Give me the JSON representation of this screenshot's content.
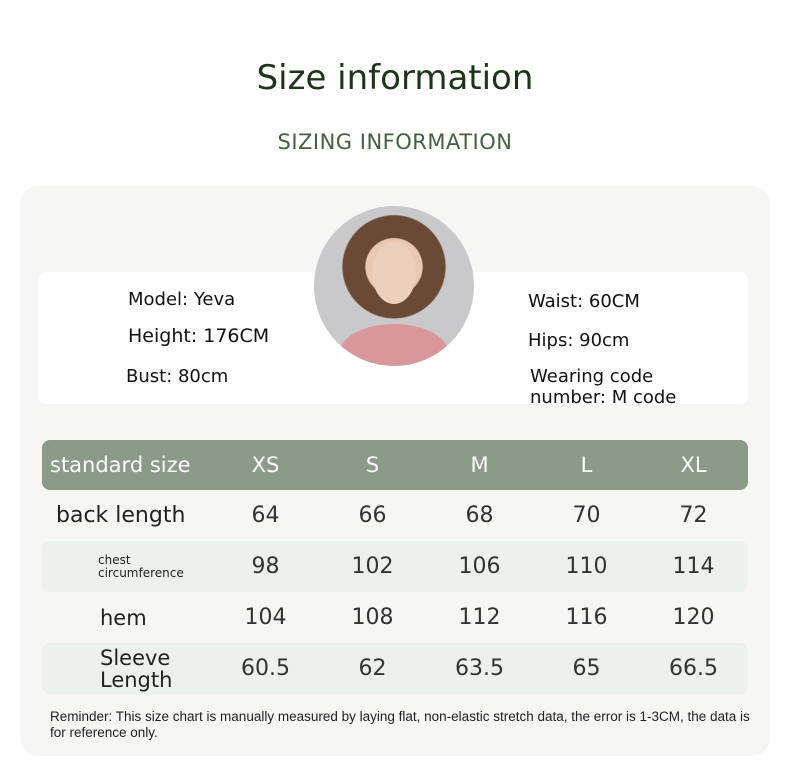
{
  "header": {
    "title": "Size information",
    "subtitle": "SIZING INFORMATION"
  },
  "model": {
    "name": "Model: Yeva",
    "height": "Height: 176CM",
    "bust": "Bust: 80cm",
    "waist": "Waist: 60CM",
    "hips": "Hips: 90cm",
    "wearing": "Wearing code number: M code"
  },
  "colors": {
    "header_bg": "#8b9a89",
    "stripe_bg": "#edf1eb",
    "title": "#1c3418"
  },
  "table": {
    "header": [
      "standard size",
      "XS",
      "S",
      "M",
      "L",
      "XL"
    ],
    "rows": [
      {
        "label": "back length",
        "values": [
          "64",
          "66",
          "68",
          "70",
          "72"
        ]
      },
      {
        "label": "chest circumference",
        "values": [
          "98",
          "102",
          "106",
          "110",
          "114"
        ]
      },
      {
        "label": "hem",
        "values": [
          "104",
          "108",
          "112",
          "116",
          "120"
        ]
      },
      {
        "label": "Sleeve Length",
        "values": [
          "60.5",
          "62",
          "63.5",
          "65",
          "66.5"
        ]
      }
    ]
  },
  "reminder": "Reminder: This size chart is manually measured by laying flat, non-elastic stretch data, the error is 1-3CM, the data is for reference only."
}
